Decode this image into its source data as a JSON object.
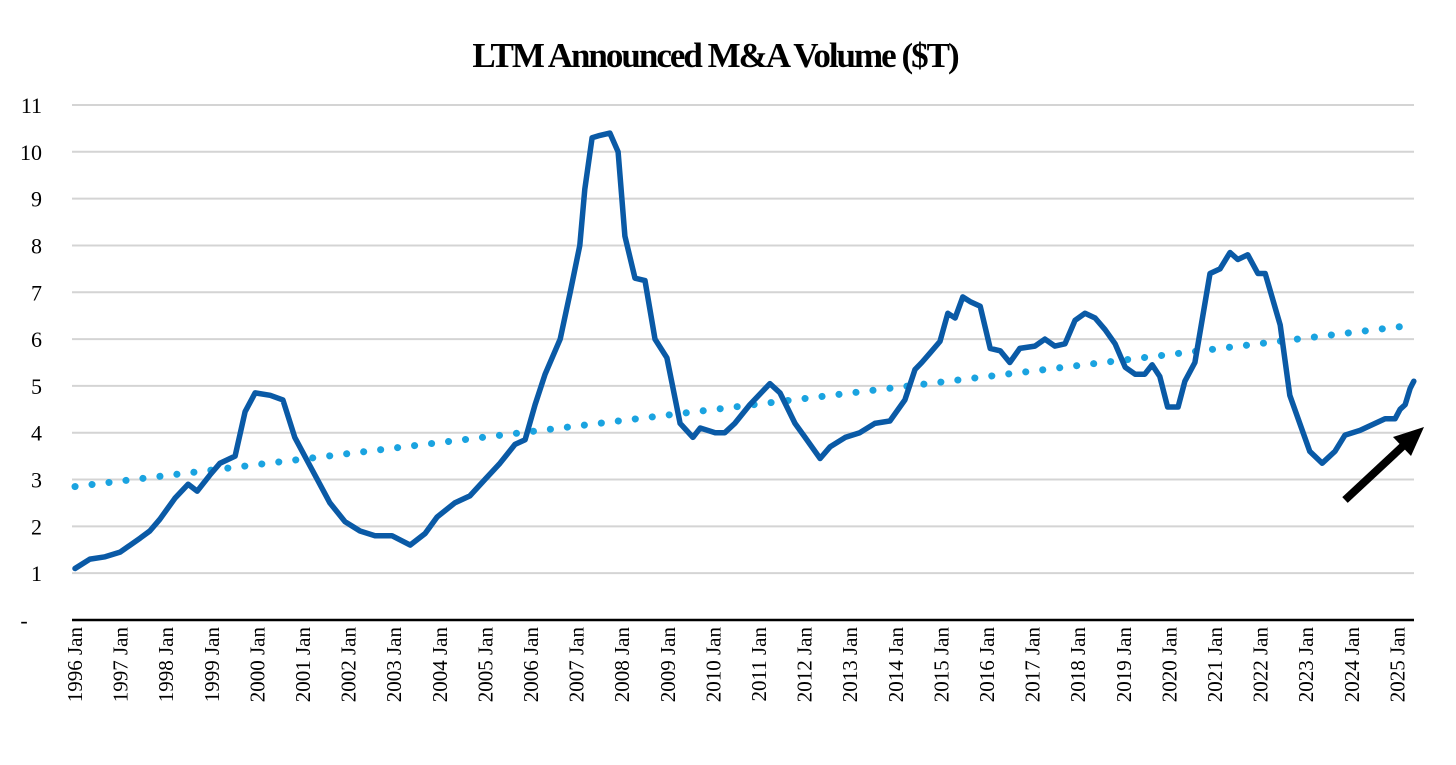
{
  "chart_data": {
    "type": "line",
    "title": "LTM Announced M&A Volume ($T)",
    "xlabel": "",
    "ylabel": "",
    "ylim": [
      0,
      11
    ],
    "xlim": [
      1996.0,
      2025.36
    ],
    "grid": true,
    "legend": "none",
    "y_ticks": [
      "-",
      "1",
      "2",
      "3",
      "4",
      "5",
      "6",
      "7",
      "8",
      "9",
      "10",
      "11"
    ],
    "x_ticks": [
      "1996 Jan",
      "1997 Jan",
      "1998 Jan",
      "1999 Jan",
      "2000 Jan",
      "2001 Jan",
      "2002 Jan",
      "2003 Jan",
      "2004 Jan",
      "2005 Jan",
      "2006 Jan",
      "2007 Jan",
      "2008 Jan",
      "2009 Jan",
      "2010 Jan",
      "2011 Jan",
      "2012 Jan",
      "2013 Jan",
      "2014 Jan",
      "2015 Jan",
      "2016 Jan",
      "2017 Jan",
      "2018 Jan",
      "2019 Jan",
      "2020 Jan",
      "2021 Jan",
      "2022 Jan",
      "2023 Jan",
      "2024 Jan",
      "2025 Jan"
    ],
    "colors": {
      "series": "#0a5aa6",
      "trend": "#1aa3e0",
      "grid": "#d4d4d4",
      "axis": "#000000",
      "arrow": "#000000"
    },
    "series": [
      {
        "name": "LTM Announced M&A Volume",
        "x": [
          1996.0,
          1996.33,
          1996.66,
          1996.99,
          1997.21,
          1997.43,
          1997.64,
          1997.86,
          1998.19,
          1998.48,
          1998.68,
          1998.96,
          1999.18,
          1999.51,
          1999.73,
          1999.95,
          2000.28,
          2000.56,
          2000.82,
          2001.15,
          2001.59,
          2001.92,
          2002.25,
          2002.58,
          2002.95,
          2003.35,
          2003.68,
          2003.94,
          2004.33,
          2004.66,
          2004.99,
          2005.32,
          2005.65,
          2005.87,
          2006.09,
          2006.31,
          2006.64,
          2006.86,
          2007.07,
          2007.18,
          2007.34,
          2007.51,
          2007.73,
          2007.91,
          2008.06,
          2008.28,
          2008.5,
          2008.72,
          2008.98,
          2009.27,
          2009.55,
          2009.71,
          2010.04,
          2010.25,
          2010.47,
          2010.8,
          2011.24,
          2011.46,
          2011.79,
          2012.01,
          2012.34,
          2012.56,
          2012.89,
          2013.21,
          2013.54,
          2013.87,
          2014.2,
          2014.42,
          2014.57,
          2014.75,
          2014.97,
          2015.14,
          2015.3,
          2015.47,
          2015.63,
          2015.85,
          2016.07,
          2016.29,
          2016.5,
          2016.72,
          2017.05,
          2017.27,
          2017.49,
          2017.71,
          2017.93,
          2018.15,
          2018.37,
          2018.59,
          2018.81,
          2019.03,
          2019.25,
          2019.46,
          2019.62,
          2019.79,
          2019.96,
          2020.19,
          2020.34,
          2020.56,
          2020.89,
          2021.11,
          2021.33,
          2021.5,
          2021.72,
          2021.94,
          2022.1,
          2022.43,
          2022.64,
          2022.86,
          2023.08,
          2023.35,
          2023.63,
          2023.85,
          2024.18,
          2024.51,
          2024.73,
          2024.95,
          2025.06,
          2025.17,
          2025.28,
          2025.36
        ],
        "values": [
          1.1,
          1.3,
          1.35,
          1.45,
          1.6,
          1.75,
          1.9,
          2.15,
          2.6,
          2.9,
          2.75,
          3.1,
          3.35,
          3.5,
          4.45,
          4.85,
          4.8,
          4.7,
          3.9,
          3.3,
          2.5,
          2.1,
          1.9,
          1.8,
          1.8,
          1.6,
          1.85,
          2.2,
          2.5,
          2.65,
          3.0,
          3.35,
          3.75,
          3.85,
          4.6,
          5.25,
          6.0,
          7.0,
          8.0,
          9.2,
          10.3,
          10.35,
          10.4,
          10.0,
          8.2,
          7.3,
          7.25,
          6.0,
          5.6,
          4.2,
          3.9,
          4.1,
          4.0,
          4.0,
          4.2,
          4.6,
          5.05,
          4.85,
          4.2,
          3.9,
          3.45,
          3.7,
          3.9,
          4.0,
          4.2,
          4.25,
          4.7,
          5.35,
          5.5,
          5.7,
          5.95,
          6.55,
          6.45,
          6.9,
          6.8,
          6.7,
          5.8,
          5.75,
          5.5,
          5.8,
          5.85,
          6.0,
          5.85,
          5.9,
          6.4,
          6.55,
          6.45,
          6.2,
          5.9,
          5.4,
          5.25,
          5.25,
          5.45,
          5.2,
          4.55,
          4.55,
          5.1,
          5.5,
          7.4,
          7.5,
          7.85,
          7.7,
          7.8,
          7.4,
          7.4,
          6.3,
          4.8,
          4.2,
          3.6,
          3.35,
          3.6,
          3.95,
          4.05,
          4.2,
          4.3,
          4.3,
          4.5,
          4.6,
          4.95,
          5.1
        ]
      },
      {
        "name": "Linear trend",
        "style": "dotted",
        "x": [
          1996.0,
          2025.36
        ],
        "values": [
          2.85,
          6.3
        ]
      }
    ]
  }
}
